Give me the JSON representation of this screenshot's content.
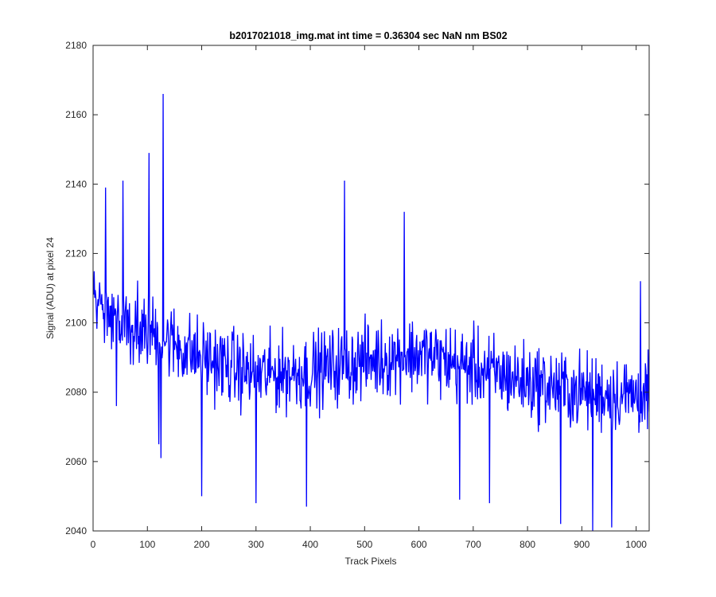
{
  "chart_data": {
    "type": "line",
    "title": "b2017021018_img.mat int time = 0.36304 sec  NaN nm BS02",
    "xlabel": "Track Pixels",
    "ylabel": "Signal (ADU) at pixel 24",
    "xlim": [
      0,
      1024
    ],
    "ylim": [
      2040,
      2180
    ],
    "xticks": [
      0,
      100,
      200,
      300,
      400,
      500,
      600,
      700,
      800,
      900,
      1000
    ],
    "yticks": [
      2040,
      2060,
      2080,
      2100,
      2120,
      2140,
      2160,
      2180
    ],
    "grid": false,
    "line_color": "#0000ff",
    "series_profile": {
      "x_start": 1,
      "x_end": 1024,
      "approx_points": 1024,
      "trend_anchors": [
        [
          1,
          2106
        ],
        [
          100,
          2098
        ],
        [
          200,
          2090
        ],
        [
          300,
          2085
        ],
        [
          400,
          2086
        ],
        [
          500,
          2089
        ],
        [
          600,
          2091
        ],
        [
          700,
          2087
        ],
        [
          800,
          2083
        ],
        [
          900,
          2080
        ],
        [
          1024,
          2079
        ]
      ],
      "noise_amplitude_adu": 11
    },
    "notable_points": [
      {
        "x": 23,
        "y": 2139
      },
      {
        "x": 43,
        "y": 2076
      },
      {
        "x": 55,
        "y": 2141
      },
      {
        "x": 103,
        "y": 2149
      },
      {
        "x": 121,
        "y": 2065
      },
      {
        "x": 125,
        "y": 2061
      },
      {
        "x": 129,
        "y": 2166
      },
      {
        "x": 200,
        "y": 2050
      },
      {
        "x": 300,
        "y": 2048
      },
      {
        "x": 393,
        "y": 2047
      },
      {
        "x": 463,
        "y": 2141
      },
      {
        "x": 573,
        "y": 2132
      },
      {
        "x": 675,
        "y": 2049
      },
      {
        "x": 730,
        "y": 2048
      },
      {
        "x": 861,
        "y": 2042
      },
      {
        "x": 920,
        "y": 2040
      },
      {
        "x": 955,
        "y": 2041
      },
      {
        "x": 1008,
        "y": 2112
      }
    ]
  }
}
